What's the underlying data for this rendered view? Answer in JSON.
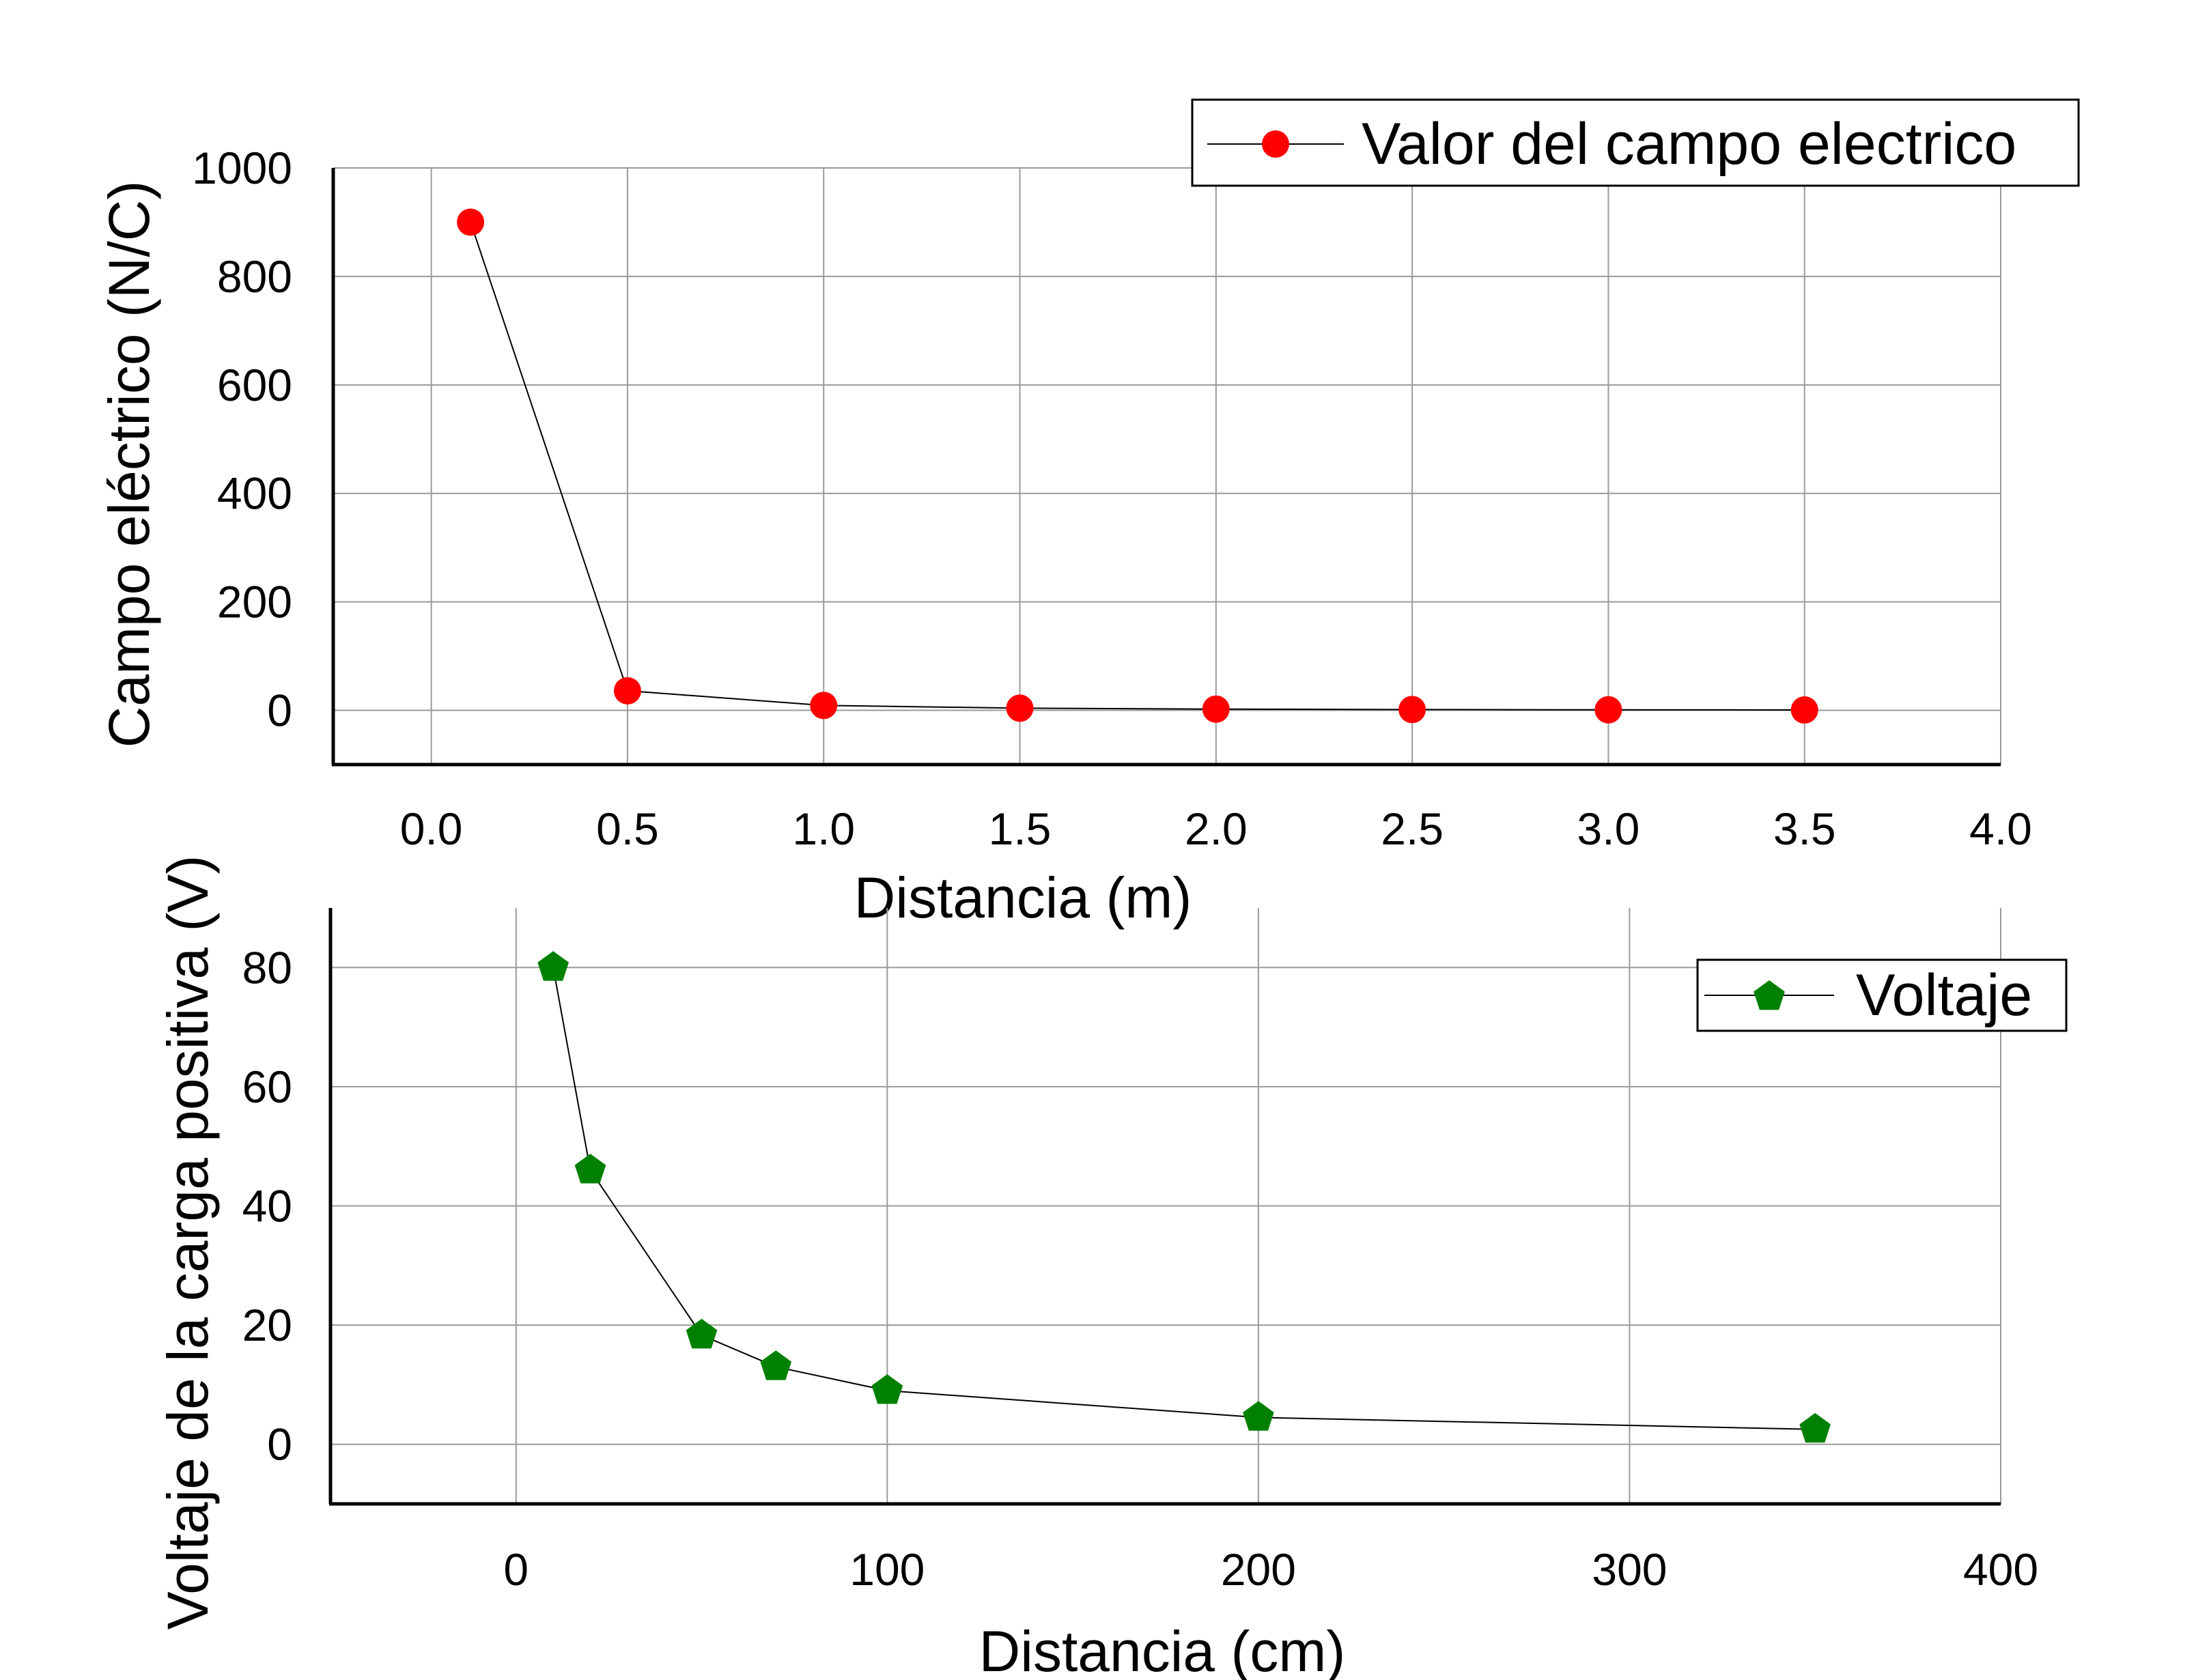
{
  "chart_data": [
    {
      "type": "line",
      "title": "",
      "xlabel": "Distancia (m)",
      "ylabel": "Campo eléctrico (N/C)",
      "xlim": [
        -0.25,
        4.0
      ],
      "ylim": [
        -100,
        1000
      ],
      "xticks": [
        "0.0",
        "0.5",
        "1.0",
        "1.5",
        "2.0",
        "2.5",
        "3.0",
        "3.5",
        "4.0"
      ],
      "yticks": [
        "0",
        "200",
        "400",
        "600",
        "800",
        "1000"
      ],
      "grid": true,
      "legend_position": "top-right",
      "series": [
        {
          "name": "Valor del campo electrico",
          "marker": "circle",
          "color": "#ff0000",
          "line_color": "#000000",
          "x": [
            0.1,
            0.5,
            1.0,
            1.5,
            2.0,
            2.5,
            3.0,
            3.5
          ],
          "y": [
            900,
            36,
            9,
            4,
            2.25,
            1.44,
            1,
            0.73
          ]
        }
      ]
    },
    {
      "type": "line",
      "title": "",
      "xlabel": "Distancia (cm)",
      "ylabel": "Voltaje de la carga positiva (V)",
      "xlim": [
        -50,
        400
      ],
      "ylim": [
        -10,
        90
      ],
      "xticks": [
        "0",
        "100",
        "200",
        "300",
        "400"
      ],
      "yticks": [
        "0",
        "20",
        "40",
        "60",
        "80"
      ],
      "grid": true,
      "legend_position": "top-right",
      "series": [
        {
          "name": "Voltaje",
          "marker": "pentagon",
          "color": "#008000",
          "line_color": "#000000",
          "x": [
            10,
            20,
            50,
            70,
            100,
            200,
            350
          ],
          "y": [
            80,
            46,
            18.3,
            13,
            9,
            4.5,
            2.5
          ]
        }
      ]
    }
  ]
}
